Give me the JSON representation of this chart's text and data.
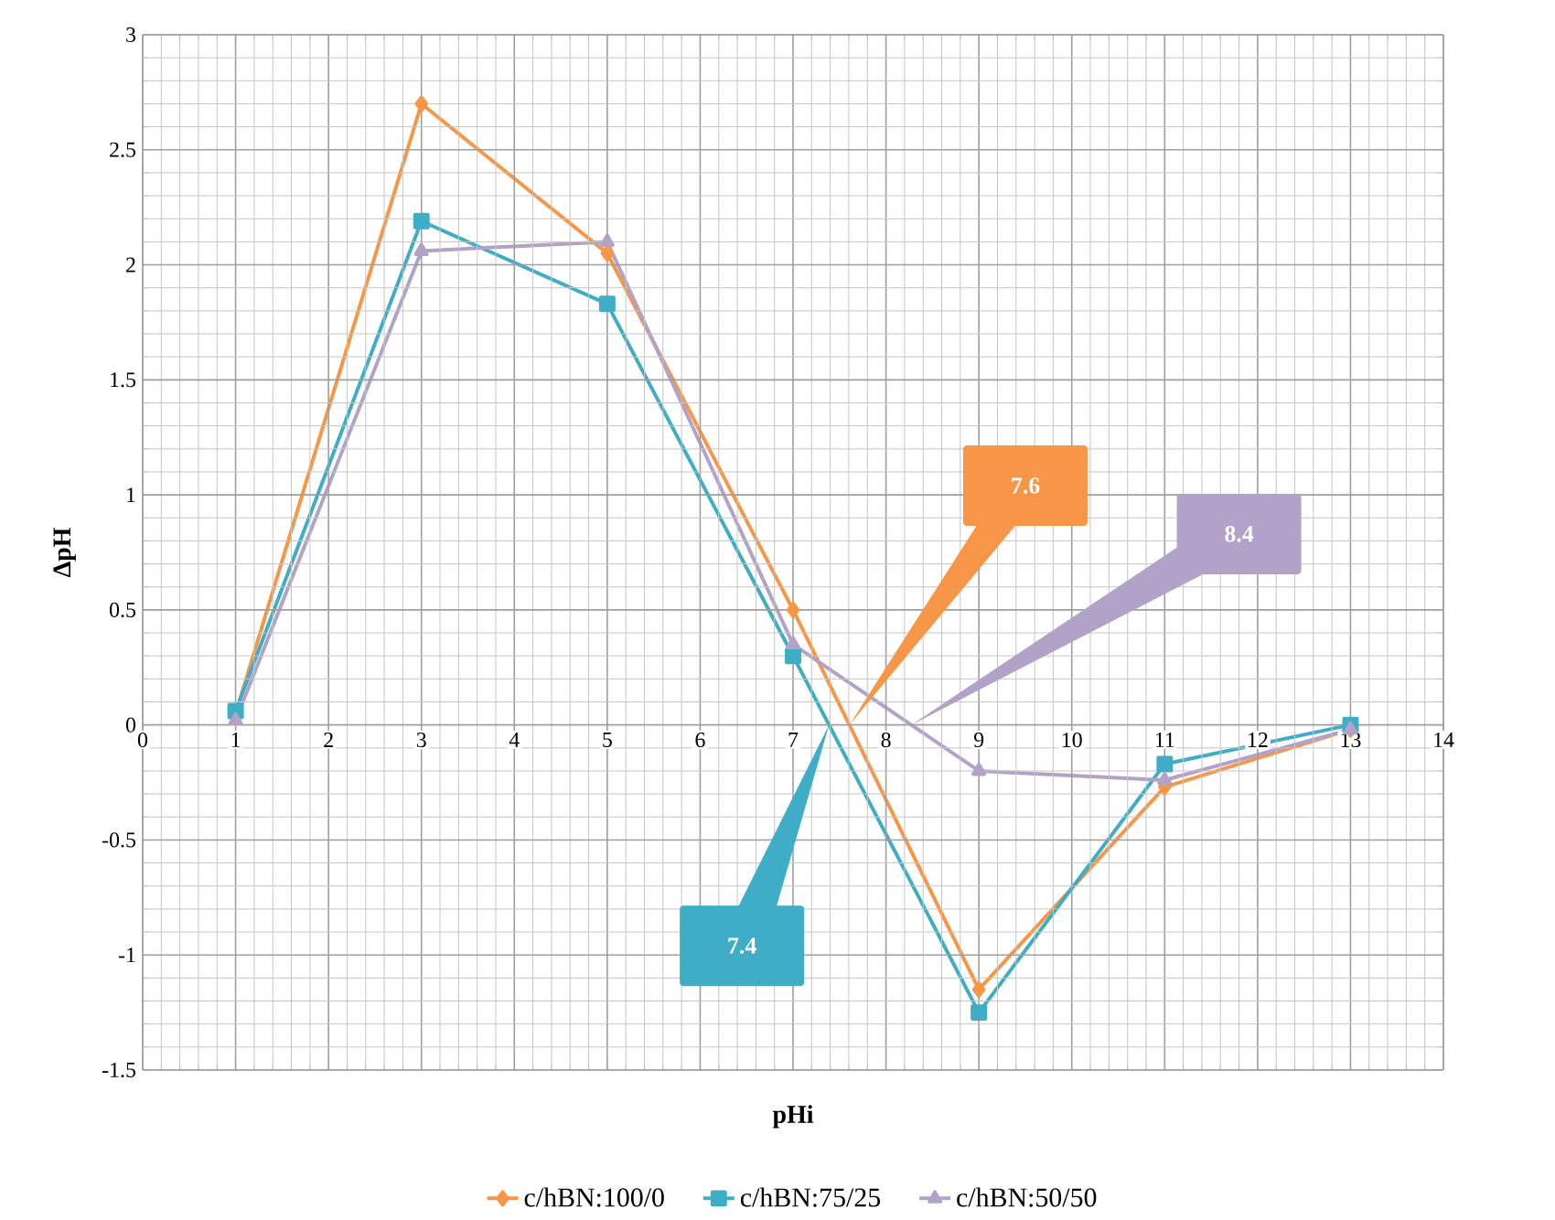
{
  "chart_data": {
    "type": "line",
    "xlabel": "pHi",
    "ylabel": "ΔpH",
    "x": [
      1,
      3,
      5,
      7,
      9,
      11,
      13
    ],
    "series": [
      {
        "name": "c/hBN:100/0",
        "color": "#f79646",
        "marker": "diamond",
        "values": [
          0.05,
          2.7,
          2.05,
          0.5,
          -1.15,
          -0.27,
          -0.02
        ]
      },
      {
        "name": "c/hBN:75/25",
        "color": "#3fadc6",
        "marker": "square",
        "values": [
          0.06,
          2.19,
          1.83,
          0.3,
          -1.25,
          -0.17,
          0
        ]
      },
      {
        "name": "c/hBN:50/50",
        "color": "#b3a2c7",
        "marker": "triangle",
        "values": [
          0.02,
          2.06,
          2.1,
          0.35,
          -0.2,
          -0.24,
          -0.02
        ]
      }
    ],
    "annotations": [
      "7.6",
      "7.4",
      "8.4"
    ],
    "xlim": [
      0,
      14
    ],
    "ylim": [
      -1.5,
      3
    ],
    "xticks": [
      0,
      1,
      2,
      3,
      4,
      5,
      6,
      7,
      8,
      9,
      10,
      11,
      12,
      13,
      14
    ],
    "yticks": [
      -1.5,
      -1,
      -0.5,
      0,
      0.5,
      1,
      1.5,
      2,
      2.5,
      3
    ],
    "grid": true,
    "legend": "bottom",
    "line_style": "solid"
  }
}
